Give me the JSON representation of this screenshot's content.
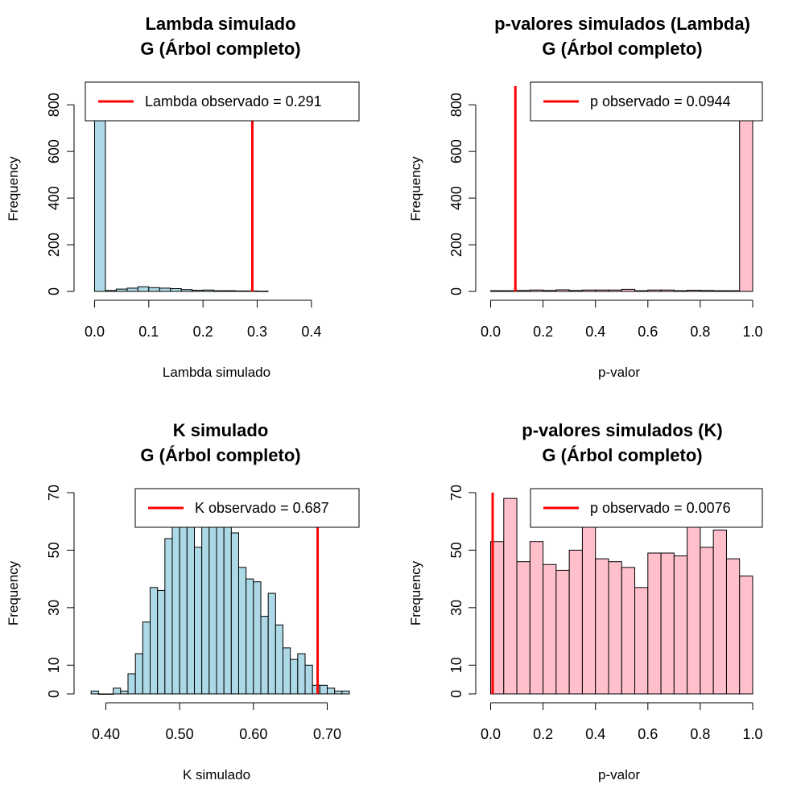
{
  "chart_data": [
    {
      "type": "histogram",
      "title": "Lambda simulado",
      "subtitle": "G (Árbol completo)",
      "xlabel": "Lambda simulado",
      "ylabel": "Frequency",
      "xlim": [
        -0.02,
        0.47
      ],
      "ylim": [
        0,
        880
      ],
      "xticks": [
        0.0,
        0.1,
        0.2,
        0.3,
        0.4
      ],
      "xtick_labels": [
        "0.0",
        "0.1",
        "0.2",
        "0.3",
        "0.4"
      ],
      "yticks": [
        0,
        200,
        400,
        600,
        800
      ],
      "ytick_labels": [
        "0",
        "200",
        "400",
        "600",
        "800"
      ],
      "bin_width": 0.02,
      "bins_start": [
        0.0,
        0.02,
        0.04,
        0.06,
        0.08,
        0.1,
        0.12,
        0.14,
        0.16,
        0.18,
        0.2,
        0.22,
        0.24,
        0.26,
        0.28,
        0.3
      ],
      "values": [
        880,
        4,
        10,
        14,
        20,
        16,
        14,
        12,
        8,
        5,
        6,
        3,
        3,
        2,
        2,
        1
      ],
      "bar_color": "#add8e6",
      "observed": {
        "value": 0.291,
        "color": "#ff0000"
      },
      "legend": {
        "label": "Lambda observado = 0.291",
        "position": "top-right"
      }
    },
    {
      "type": "histogram",
      "title": "p-valores simulados (Lambda)",
      "subtitle": "G (Árbol completo)",
      "xlabel": "p-valor",
      "ylabel": "Frequency",
      "xlim": [
        -0.02,
        1.0
      ],
      "ylim": [
        0,
        880
      ],
      "xticks": [
        0.0,
        0.2,
        0.4,
        0.6,
        0.8,
        1.0
      ],
      "xtick_labels": [
        "0.0",
        "0.2",
        "0.4",
        "0.6",
        "0.8",
        "1.0"
      ],
      "yticks": [
        0,
        200,
        400,
        600,
        800
      ],
      "ytick_labels": [
        "0",
        "200",
        "400",
        "600",
        "800"
      ],
      "bin_width": 0.05,
      "bins_start": [
        0.0,
        0.05,
        0.1,
        0.15,
        0.2,
        0.25,
        0.3,
        0.35,
        0.4,
        0.45,
        0.5,
        0.55,
        0.6,
        0.65,
        0.7,
        0.75,
        0.8,
        0.85,
        0.9,
        0.95
      ],
      "values": [
        3,
        3,
        4,
        6,
        4,
        7,
        4,
        6,
        6,
        6,
        9,
        3,
        6,
        6,
        3,
        5,
        4,
        3,
        3,
        880
      ],
      "bar_color": "#ffc0cb",
      "observed": {
        "value": 0.0944,
        "color": "#ff0000"
      },
      "legend": {
        "label": "p observado = 0.0944",
        "position": "top-right"
      }
    },
    {
      "type": "histogram",
      "title": "K simulado",
      "subtitle": "G (Árbol completo)",
      "xlabel": "K simulado",
      "ylabel": "Frequency",
      "xlim": [
        0.37,
        0.73
      ],
      "ylim": [
        0,
        70
      ],
      "xticks": [
        0.4,
        0.5,
        0.6,
        0.7
      ],
      "xtick_labels": [
        "0.40",
        "0.50",
        "0.60",
        "0.70"
      ],
      "yticks": [
        0,
        10,
        30,
        50,
        70
      ],
      "ytick_labels": [
        "0",
        "10",
        "30",
        "50",
        "70"
      ],
      "bin_width": 0.01,
      "bins_start": [
        0.38,
        0.39,
        0.4,
        0.41,
        0.42,
        0.43,
        0.44,
        0.45,
        0.46,
        0.47,
        0.48,
        0.49,
        0.5,
        0.51,
        0.52,
        0.53,
        0.54,
        0.55,
        0.56,
        0.57,
        0.58,
        0.59,
        0.6,
        0.61,
        0.62,
        0.63,
        0.64,
        0.65,
        0.66,
        0.67,
        0.68,
        0.69,
        0.7,
        0.71,
        0.72
      ],
      "values": [
        1,
        0,
        0,
        2,
        1,
        7,
        14,
        25,
        37,
        36,
        54,
        70,
        78,
        66,
        51,
        65,
        72,
        80,
        72,
        56,
        44,
        40,
        39,
        27,
        35,
        24,
        16,
        12,
        14,
        10,
        3,
        3,
        2,
        1,
        1
      ],
      "bar_color": "#add8e6",
      "observed": {
        "value": 0.687,
        "color": "#ff0000"
      },
      "legend": {
        "label": "K observado = 0.687",
        "position": "top-right"
      }
    },
    {
      "type": "histogram",
      "title": "p-valores simulados (K)",
      "subtitle": "G (Árbol completo)",
      "xlabel": "p-valor",
      "ylabel": "Frequency",
      "xlim": [
        -0.02,
        1.0
      ],
      "ylim": [
        0,
        70
      ],
      "xticks": [
        0.0,
        0.2,
        0.4,
        0.6,
        0.8,
        1.0
      ],
      "xtick_labels": [
        "0.0",
        "0.2",
        "0.4",
        "0.6",
        "0.8",
        "1.0"
      ],
      "yticks": [
        0,
        10,
        30,
        50,
        70
      ],
      "ytick_labels": [
        "0",
        "10",
        "30",
        "50",
        "70"
      ],
      "bin_width": 0.05,
      "bins_start": [
        0.0,
        0.05,
        0.1,
        0.15,
        0.2,
        0.25,
        0.3,
        0.35,
        0.4,
        0.45,
        0.5,
        0.55,
        0.6,
        0.65,
        0.7,
        0.75,
        0.8,
        0.85,
        0.9,
        0.95
      ],
      "values": [
        53,
        68,
        46,
        53,
        45,
        43,
        50,
        58,
        47,
        46,
        44,
        37,
        49,
        49,
        48,
        58,
        51,
        57,
        47,
        41
      ],
      "bar_color": "#ffc0cb",
      "observed": {
        "value": 0.0076,
        "color": "#ff0000"
      },
      "legend": {
        "label": "p observado = 0.0076",
        "position": "top-right"
      }
    }
  ]
}
